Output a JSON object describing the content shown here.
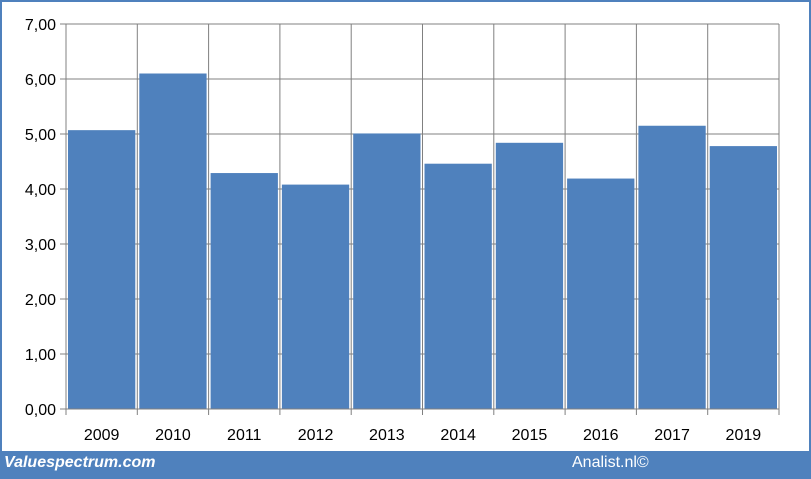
{
  "chart_data": {
    "type": "bar",
    "categories": [
      "2009",
      "2010",
      "2011",
      "2012",
      "2013",
      "2014",
      "2015",
      "2016",
      "2017",
      "2019"
    ],
    "values": [
      5.07,
      6.1,
      4.29,
      4.08,
      5.01,
      4.46,
      4.84,
      4.19,
      5.15,
      4.78
    ],
    "ylim": [
      0,
      7
    ],
    "yticks": [
      "0,00",
      "1,00",
      "2,00",
      "3,00",
      "4,00",
      "5,00",
      "6,00",
      "7,00"
    ],
    "grid": true,
    "bar_color": "#4f81bd"
  },
  "footer": {
    "left_text": "Valuespectrum.com",
    "right_text": "Analist.nl©"
  },
  "colors": {
    "frame": "#4f81bd",
    "grid": "#808080"
  }
}
